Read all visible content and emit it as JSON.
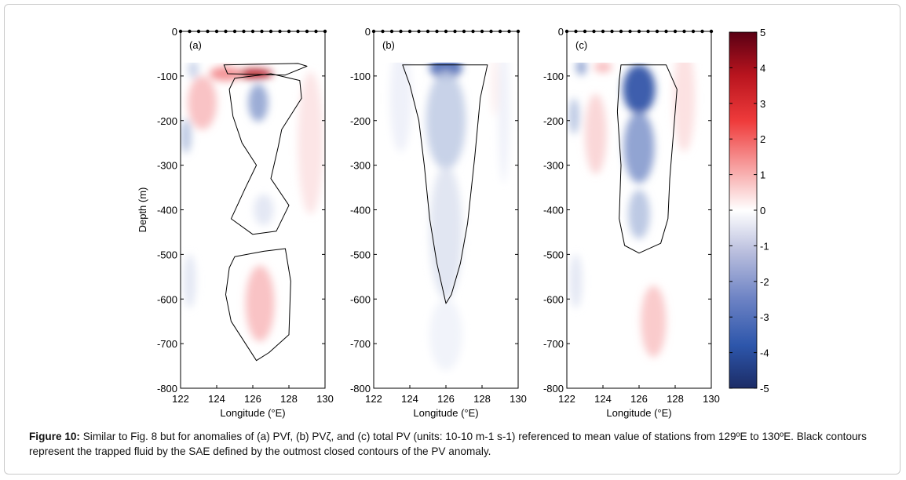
{
  "figure": {
    "caption_label": "Figure 10:",
    "caption_text": " Similar to Fig. 8 but for anomalies of (a) PVf, (b) PVζ, and (c) total PV (units: 10-10 m-1 s-1) referenced to mean value of stations from 129ºE to 130ºE. Black contours represent the trapped fluid by the SAE defined by the outmost closed contours of the PV anomaly."
  },
  "colors": {
    "positive_max": "#67001f",
    "positive": "#e8242a",
    "neutral": "#ffffff",
    "negative": "#2a4fa8",
    "negative_max": "#1a2a6a",
    "contour": "#000000",
    "station_marker": "#000000"
  },
  "chart_data": [
    {
      "type": "heatmap",
      "panel_label": "(a)",
      "ylabel": "Depth (m)",
      "xlabel": "Longitude (°E)",
      "xlim": [
        122,
        130
      ],
      "ylim": [
        -800,
        0
      ],
      "x_ticks": [
        "122",
        "124",
        "126",
        "128",
        "130"
      ],
      "y_ticks": [
        "0",
        "-100",
        "-200",
        "-300",
        "-400",
        "-500",
        "-600",
        "-700",
        "-800"
      ],
      "stations": [
        122,
        122.5,
        123,
        123.5,
        124,
        124.5,
        125,
        125.5,
        126,
        126.5,
        127,
        127.5,
        128,
        128.5,
        129,
        129.5,
        130
      ],
      "features": [
        {
          "lon": 126.1,
          "depth": -95,
          "value": 3.8,
          "sigma_lon": 1.0,
          "sigma_depth": 12
        },
        {
          "lon": 124.5,
          "depth": -95,
          "value": 1.6,
          "sigma_lon": 0.9,
          "sigma_depth": 16
        },
        {
          "lon": 126.3,
          "depth": -160,
          "value": -1.8,
          "sigma_lon": 0.55,
          "sigma_depth": 42
        },
        {
          "lon": 126.6,
          "depth": -400,
          "value": -0.5,
          "sigma_lon": 0.55,
          "sigma_depth": 35
        },
        {
          "lon": 122.3,
          "depth": -235,
          "value": -1.2,
          "sigma_lon": 0.3,
          "sigma_depth": 38
        },
        {
          "lon": 122.7,
          "depth": -85,
          "value": -0.9,
          "sigma_lon": 0.3,
          "sigma_depth": 20
        },
        {
          "lon": 123.2,
          "depth": -160,
          "value": 0.9,
          "sigma_lon": 0.8,
          "sigma_depth": 60
        },
        {
          "lon": 126.4,
          "depth": -610,
          "value": 0.9,
          "sigma_lon": 0.8,
          "sigma_depth": 85
        },
        {
          "lon": 122.5,
          "depth": -560,
          "value": -0.5,
          "sigma_lon": 0.35,
          "sigma_depth": 60
        },
        {
          "lon": 129.2,
          "depth": -250,
          "value": 0.4,
          "sigma_lon": 0.7,
          "sigma_depth": 160
        }
      ],
      "contours": [
        [
          [
            124.4,
            -75
          ],
          [
            128.5,
            -72
          ],
          [
            129.0,
            -78
          ],
          [
            127.8,
            -98
          ],
          [
            124.6,
            -95
          ]
        ],
        [
          [
            125.0,
            -105
          ],
          [
            127.0,
            -95
          ],
          [
            128.6,
            -110
          ],
          [
            128.7,
            -150
          ],
          [
            127.6,
            -220
          ],
          [
            127.4,
            -260
          ],
          [
            127.0,
            -330
          ],
          [
            128.0,
            -390
          ],
          [
            127.3,
            -448
          ],
          [
            126.0,
            -455
          ],
          [
            124.8,
            -420
          ],
          [
            125.6,
            -350
          ],
          [
            126.2,
            -300
          ],
          [
            125.4,
            -250
          ],
          [
            124.9,
            -190
          ],
          [
            124.7,
            -130
          ]
        ],
        [
          [
            125.0,
            -505
          ],
          [
            126.6,
            -493
          ],
          [
            127.8,
            -487
          ],
          [
            128.1,
            -560
          ],
          [
            128.0,
            -680
          ],
          [
            126.9,
            -720
          ],
          [
            126.2,
            -738
          ],
          [
            124.8,
            -650
          ],
          [
            124.5,
            -590
          ],
          [
            124.7,
            -530
          ]
        ]
      ]
    },
    {
      "type": "heatmap",
      "panel_label": "(b)",
      "xlabel": "Longitude (°E)",
      "xlim": [
        122,
        130
      ],
      "ylim": [
        -800,
        0
      ],
      "x_ticks": [
        "122",
        "124",
        "126",
        "128",
        "130"
      ],
      "y_ticks": [
        "0",
        "-100",
        "-200",
        "-300",
        "-400",
        "-500",
        "-600",
        "-700",
        "-800"
      ],
      "stations": [
        122,
        122.5,
        123,
        123.5,
        124,
        124.5,
        125,
        125.5,
        126,
        126.5,
        127,
        127.5,
        128,
        128.5,
        129,
        129.5,
        130
      ],
      "features": [
        {
          "lon": 126.0,
          "depth": -80,
          "value": -2.9,
          "sigma_lon": 0.9,
          "sigma_depth": 28
        },
        {
          "lon": 126.0,
          "depth": -200,
          "value": -1.0,
          "sigma_lon": 1.1,
          "sigma_depth": 110
        },
        {
          "lon": 126.0,
          "depth": -450,
          "value": -0.55,
          "sigma_lon": 0.9,
          "sigma_depth": 150
        },
        {
          "lon": 126.0,
          "depth": -680,
          "value": -0.25,
          "sigma_lon": 0.9,
          "sigma_depth": 80
        },
        {
          "lon": 123.5,
          "depth": -150,
          "value": -0.3,
          "sigma_lon": 0.6,
          "sigma_depth": 120
        },
        {
          "lon": 129.2,
          "depth": -180,
          "value": -0.3,
          "sigma_lon": 0.3,
          "sigma_depth": 160
        },
        {
          "lon": 128.7,
          "depth": -120,
          "value": 0.25,
          "sigma_lon": 0.2,
          "sigma_depth": 70
        }
      ],
      "contours": [
        [
          [
            123.6,
            -75
          ],
          [
            128.3,
            -75
          ],
          [
            127.9,
            -150
          ],
          [
            127.6,
            -280
          ],
          [
            127.2,
            -430
          ],
          [
            126.8,
            -520
          ],
          [
            126.3,
            -590
          ],
          [
            126.0,
            -610
          ],
          [
            125.5,
            -520
          ],
          [
            125.1,
            -420
          ],
          [
            124.8,
            -300
          ],
          [
            124.5,
            -200
          ],
          [
            124.0,
            -120
          ]
        ]
      ]
    },
    {
      "type": "heatmap",
      "panel_label": "(c)",
      "xlabel": "Longitude (°E)",
      "xlim": [
        122,
        130
      ],
      "ylim": [
        -800,
        0
      ],
      "x_ticks": [
        "122",
        "124",
        "126",
        "128",
        "130"
      ],
      "y_ticks": [
        "0",
        "-100",
        "-200",
        "-300",
        "-400",
        "-500",
        "-600",
        "-700",
        "-800"
      ],
      "stations": [
        122,
        122.5,
        123,
        123.5,
        124,
        124.5,
        125,
        125.5,
        126,
        126.5,
        127,
        127.5,
        128,
        128.5,
        129,
        129.5,
        130
      ],
      "features": [
        {
          "lon": 126.0,
          "depth": -130,
          "value": -3.6,
          "sigma_lon": 0.9,
          "sigma_depth": 55
        },
        {
          "lon": 126.0,
          "depth": -260,
          "value": -2.0,
          "sigma_lon": 0.85,
          "sigma_depth": 80
        },
        {
          "lon": 126.0,
          "depth": -410,
          "value": -1.2,
          "sigma_lon": 0.6,
          "sigma_depth": 55
        },
        {
          "lon": 122.4,
          "depth": -190,
          "value": -1.2,
          "sigma_lon": 0.3,
          "sigma_depth": 40
        },
        {
          "lon": 122.8,
          "depth": -80,
          "value": -1.8,
          "sigma_lon": 0.3,
          "sigma_depth": 18
        },
        {
          "lon": 123.6,
          "depth": -230,
          "value": 0.6,
          "sigma_lon": 0.6,
          "sigma_depth": 90
        },
        {
          "lon": 128.5,
          "depth": -150,
          "value": 0.45,
          "sigma_lon": 0.6,
          "sigma_depth": 120
        },
        {
          "lon": 126.8,
          "depth": -650,
          "value": 0.8,
          "sigma_lon": 0.7,
          "sigma_depth": 80
        },
        {
          "lon": 122.5,
          "depth": -560,
          "value": -0.5,
          "sigma_lon": 0.35,
          "sigma_depth": 60
        },
        {
          "lon": 124.0,
          "depth": -80,
          "value": 1.0,
          "sigma_lon": 0.5,
          "sigma_depth": 12
        }
      ],
      "contours": [
        [
          [
            125.0,
            -75
          ],
          [
            127.5,
            -75
          ],
          [
            128.1,
            -130
          ],
          [
            127.9,
            -230
          ],
          [
            127.7,
            -330
          ],
          [
            127.6,
            -420
          ],
          [
            127.2,
            -475
          ],
          [
            126.0,
            -497
          ],
          [
            125.2,
            -480
          ],
          [
            124.9,
            -420
          ],
          [
            125.0,
            -300
          ],
          [
            124.8,
            -180
          ],
          [
            124.9,
            -110
          ]
        ]
      ]
    }
  ],
  "colorbar": {
    "ticks": [
      "5",
      "4",
      "3",
      "2",
      "1",
      "0",
      "-1",
      "-2",
      "-3",
      "-4",
      "-5"
    ],
    "range": [
      -5,
      5
    ]
  }
}
